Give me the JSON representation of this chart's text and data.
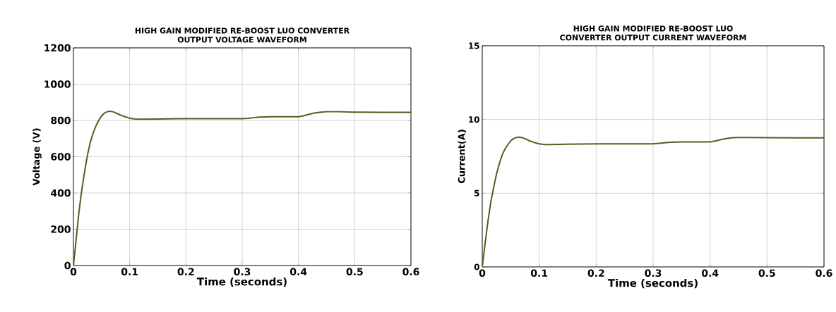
{
  "chart_data": [
    {
      "type": "line",
      "title": "HIGH GAIN MODIFIED RE-BOOST LUO CONVERTER\nOUTPUT VOLTAGE WAVEFORM",
      "xlabel": "Time (seconds)",
      "ylabel": "Voltage (V)",
      "xlim": [
        0,
        0.6
      ],
      "ylim": [
        0,
        1200
      ],
      "xticks": [
        0,
        0.1,
        0.2,
        0.3,
        0.4,
        0.5,
        0.6
      ],
      "yticks": [
        0,
        200,
        400,
        600,
        800,
        1000,
        1200
      ],
      "grid": true,
      "series": [
        {
          "color": "#5a5a1e",
          "x": [
            0,
            0.005,
            0.01,
            0.015,
            0.02,
            0.025,
            0.03,
            0.035,
            0.04,
            0.045,
            0.05,
            0.055,
            0.06,
            0.065,
            0.07,
            0.075,
            0.08,
            0.09,
            0.1,
            0.11,
            0.12,
            0.15,
            0.2,
            0.25,
            0.3,
            0.31,
            0.32,
            0.33,
            0.35,
            0.38,
            0.4,
            0.41,
            0.42,
            0.43,
            0.44,
            0.45,
            0.47,
            0.5,
            0.55,
            0.6
          ],
          "values": [
            0,
            150,
            300,
            420,
            520,
            610,
            680,
            730,
            770,
            800,
            825,
            840,
            848,
            850,
            848,
            842,
            835,
            822,
            812,
            808,
            807,
            808,
            810,
            810,
            810,
            812,
            815,
            818,
            820,
            820,
            820,
            826,
            835,
            842,
            846,
            848,
            848,
            846,
            845,
            845
          ]
        }
      ]
    },
    {
      "type": "line",
      "title": "HIGH GAIN MODIFIED RE-BOOST LUO\nCONVERTER OUTPUT CURRENT WAVEFORM",
      "xlabel": "Time (seconds)",
      "ylabel": "Current(A)",
      "xlim": [
        0,
        0.6
      ],
      "ylim": [
        0,
        15
      ],
      "xticks": [
        0,
        0.1,
        0.2,
        0.3,
        0.4,
        0.5,
        0.6
      ],
      "yticks": [
        0,
        5,
        10,
        15
      ],
      "grid": true,
      "series": [
        {
          "color": "#5a5a1e",
          "x": [
            0,
            0.005,
            0.01,
            0.015,
            0.02,
            0.025,
            0.03,
            0.035,
            0.04,
            0.045,
            0.05,
            0.055,
            0.06,
            0.065,
            0.07,
            0.075,
            0.08,
            0.09,
            0.1,
            0.11,
            0.12,
            0.15,
            0.2,
            0.25,
            0.3,
            0.31,
            0.32,
            0.33,
            0.35,
            0.38,
            0.4,
            0.41,
            0.42,
            0.43,
            0.44,
            0.45,
            0.47,
            0.5,
            0.55,
            0.6
          ],
          "values": [
            0,
            1.6,
            3.1,
            4.4,
            5.4,
            6.3,
            7.0,
            7.6,
            8.0,
            8.3,
            8.55,
            8.7,
            8.78,
            8.8,
            8.77,
            8.7,
            8.6,
            8.45,
            8.35,
            8.3,
            8.3,
            8.32,
            8.35,
            8.35,
            8.35,
            8.38,
            8.42,
            8.45,
            8.48,
            8.48,
            8.48,
            8.55,
            8.65,
            8.72,
            8.76,
            8.78,
            8.78,
            8.76,
            8.75,
            8.75
          ]
        }
      ]
    }
  ]
}
